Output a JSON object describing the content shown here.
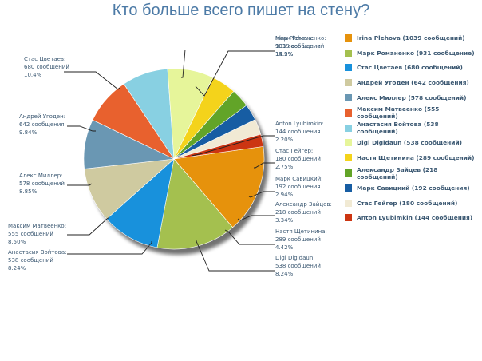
{
  "title": "Кто больше всего пишет на стену?",
  "chart_data": {
    "type": "pie",
    "title": "Кто больше всего пишет на стену?",
    "slices": [
      {
        "name": "Irina Plehova",
        "value": 1039,
        "count_label": "1039 сообщений",
        "pct_label": "15.9%",
        "color": "#e6920c"
      },
      {
        "name": "Марк Романенко",
        "value": 931,
        "count_label": "931 сообщение",
        "pct_label": "14.2%",
        "color": "#a4c04f"
      },
      {
        "name": "Стас Цветаев",
        "value": 680,
        "count_label": "680 сообщений",
        "pct_label": "10.4%",
        "color": "#1891dc"
      },
      {
        "name": "Андрей Угоден",
        "value": 642,
        "count_label": "642 сообщения",
        "pct_label": "9.84%",
        "color": "#cfcaa0"
      },
      {
        "name": "Алекс Миллер",
        "value": 578,
        "count_label": "578 сообщений",
        "pct_label": "8.85%",
        "color": "#6a97b3"
      },
      {
        "name": "Максим Матвеенко",
        "value": 555,
        "count_label": "555 сообщений",
        "pct_label": "8.50%",
        "color": "#e8612e"
      },
      {
        "name": "Анастасия Войтова",
        "value": 538,
        "count_label": "538 сообщений",
        "pct_label": "8.24%",
        "color": "#88d0e2"
      },
      {
        "name": "Digi Digidaun",
        "value": 538,
        "count_label": "538 сообщений",
        "pct_label": "8.24%",
        "color": "#e6f59a"
      },
      {
        "name": "Настя Щетинина",
        "value": 289,
        "count_label": "289 сообщений",
        "pct_label": "4.42%",
        "color": "#f4d31b"
      },
      {
        "name": "Александр Зайцев",
        "value": 218,
        "count_label": "218 сообщений",
        "pct_label": "3.34%",
        "color": "#62a428"
      },
      {
        "name": "Марк Савицкий",
        "value": 192,
        "count_label": "192 сообщения",
        "pct_label": "2.94%",
        "color": "#175da3"
      },
      {
        "name": "Стас Гейгер",
        "value": 180,
        "count_label": "180 сообщений",
        "pct_label": "2.75%",
        "color": "#f1ead4"
      },
      {
        "name": "Anton Lyubimkin",
        "value": 144,
        "count_label": "144 сообщения",
        "pct_label": "2.20%",
        "color": "#cc3512"
      }
    ]
  },
  "legend": [
    {
      "label": "Irina Plehova (1039 сообщений)",
      "color": "#e6920c"
    },
    {
      "label": "Марк Романенко (931 сообщение)",
      "color": "#a4c04f"
    },
    {
      "label": "Стас Цветаев (680 сообщений)",
      "color": "#1891dc"
    },
    {
      "label": "Андрей Угоден (642 сообщения)",
      "color": "#cfcaa0"
    },
    {
      "label": "Алекс Миллер (578 сообщений)",
      "color": "#6a97b3"
    },
    {
      "label": "Максим Матвеенко (555 сообщений)",
      "color": "#e8612e"
    },
    {
      "label": "Анастасия Войтова (538 сообщений)",
      "color": "#88d0e2"
    },
    {
      "label": "Digi Digidaun (538 сообщений)",
      "color": "#e6f59a"
    },
    {
      "label": "Настя Щетинина (289 сообщений)",
      "color": "#f4d31b"
    },
    {
      "label": "Александр Зайцев (218 сообщений)",
      "color": "#62a428"
    },
    {
      "label": "Марк Савицкий (192 сообщения)",
      "color": "#175da3"
    },
    {
      "label": "Стас Гейгер (180 сообщений)",
      "color": "#f1ead4"
    },
    {
      "label": "Anton Lyubimkin (144 сообщения)",
      "color": "#cc3512"
    }
  ]
}
